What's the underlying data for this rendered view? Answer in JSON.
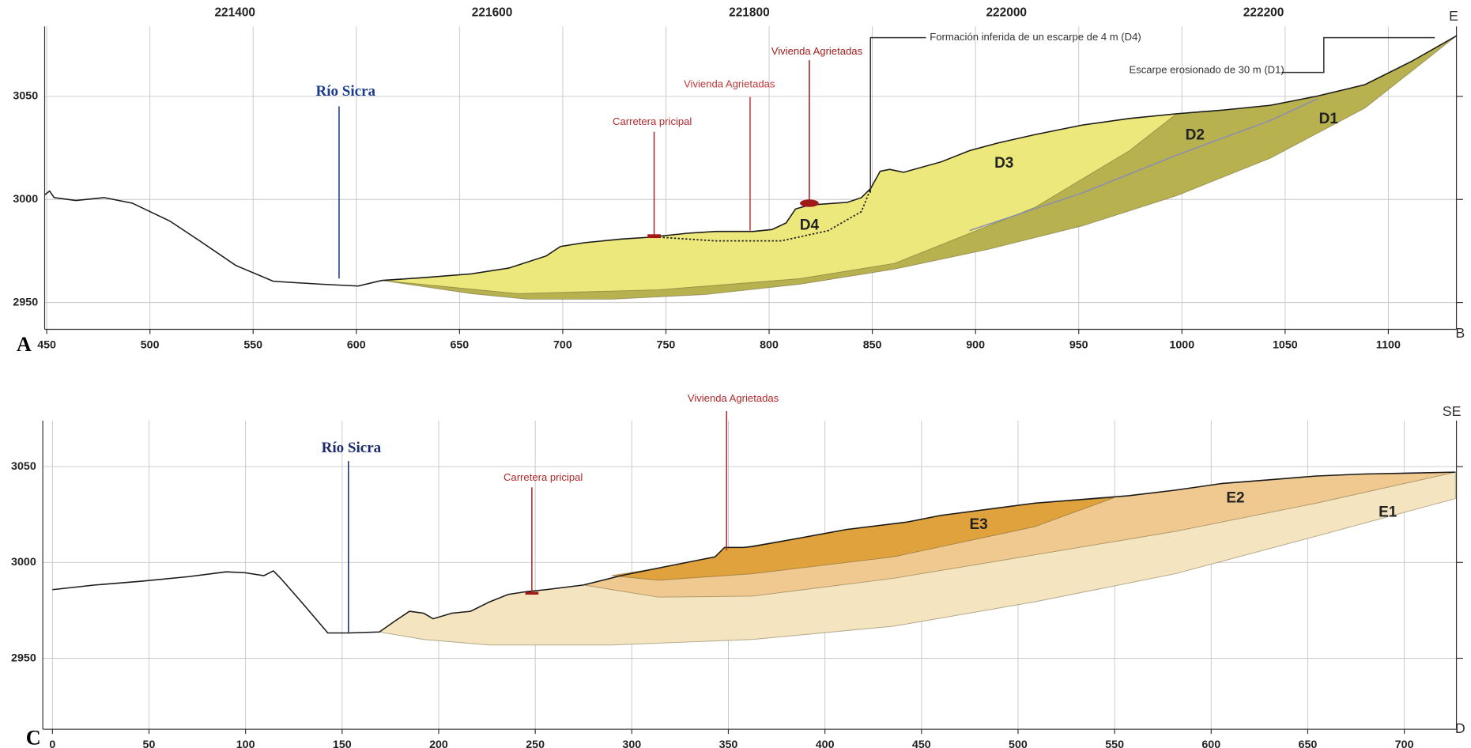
{
  "chart_data": [
    {
      "type": "line",
      "panel_label": "A",
      "end_labels": [
        "E",
        "B"
      ],
      "xlim": [
        449,
        1133
      ],
      "xticks": [
        450,
        500,
        550,
        600,
        650,
        700,
        750,
        800,
        850,
        900,
        950,
        1000,
        1050,
        1100
      ],
      "x2lim": [
        221252,
        222350
      ],
      "x2ticks": [
        221400,
        221600,
        221800,
        222000,
        222200
      ],
      "ylim": [
        2937,
        3084
      ],
      "yticks": [
        2950,
        3000,
        3050
      ],
      "grid": true,
      "areas": [
        {
          "color": "#b8b150",
          "x": [
            612.3,
            632.8,
            655.6,
            673.8,
            692.0,
            698.9,
            710.3,
            728.5,
            742.2,
            760.4,
            774.1,
            792.3,
            801.4,
            808.2,
            812.8,
            819.6,
            837.9,
            844.7,
            849.3,
            853.8,
            858.4,
            865.2,
            883.5,
            897.1,
            910.8,
            929.0,
            951.8,
            974.6,
            997.4,
            1020.2,
            1043.0,
            1065.8,
            1088.6,
            1111.4,
            1133.2,
            1088.6,
            1043.0,
            997.4,
            951.8,
            906.2,
            860.7,
            815.1,
            769.5,
            723.9,
            682.9,
            655.6
          ],
          "values": [
            2960.7,
            2962.1,
            2963.9,
            2966.7,
            2972.6,
            2977.2,
            2979.0,
            2980.8,
            2981.7,
            2983.6,
            2984.5,
            2984.5,
            2985.4,
            2988.6,
            2995.4,
            2997.3,
            2998.6,
            3000.9,
            3005.5,
            3013.7,
            3014.6,
            3013.2,
            3018.3,
            3023.7,
            3027.4,
            3031.5,
            3036.1,
            3039.3,
            3041.6,
            3043.4,
            3045.7,
            3050.2,
            3055.7,
            3067.1,
            3079.5,
            3044.3,
            3020.1,
            3001.8,
            2987.2,
            2975.8,
            2966.2,
            2958.9,
            2953.9,
            2951.6,
            2951.6,
            2954.3
          ]
        },
        {
          "color": "#ede87c",
          "x": [
            612.3,
            632.8,
            655.6,
            673.8,
            692.0,
            698.9,
            710.3,
            728.5,
            742.2,
            760.4,
            774.1,
            792.3,
            801.4,
            808.2,
            812.8,
            819.6,
            837.9,
            844.7,
            849.3,
            853.8,
            858.4,
            865.2,
            883.5,
            897.1,
            910.8,
            929.0,
            951.8,
            974.6,
            997.4,
            974.6,
            929.0,
            883.5,
            860.7,
            815.1,
            746.7,
            678.3
          ],
          "values": [
            2960.7,
            2962.1,
            2963.9,
            2966.7,
            2972.6,
            2977.2,
            2979.0,
            2980.8,
            2981.7,
            2983.6,
            2984.5,
            2984.5,
            2985.4,
            2988.6,
            2995.4,
            2997.3,
            2998.6,
            3000.9,
            3005.5,
            3013.7,
            3014.6,
            3013.2,
            3018.3,
            3023.7,
            3027.4,
            3031.5,
            3036.1,
            3039.3,
            3041.6,
            3023.7,
            2996.3,
            2978.1,
            2969.0,
            2961.6,
            2956.2,
            2954.3
          ]
        }
      ],
      "lines": [
        {
          "color": "#8a8fb0",
          "dash": false,
          "x": [
            897.1,
            951.8,
            997.4,
            1043.0,
            1065.8
          ],
          "values": [
            2984.9,
            3003.2,
            3021.5,
            3038.4,
            3048.9
          ]
        },
        {
          "color": "#222222",
          "dash": true,
          "x": [
            746.7,
            774.1,
            805.9,
            828.7,
            844.7,
            849.3
          ],
          "values": [
            2981.7,
            2979.9,
            2979.9,
            2984.9,
            2994.1,
            3005.5
          ]
        }
      ],
      "series": [
        {
          "color": "#1a1a1a",
          "x": [
            449.1,
            451.4,
            453.6,
            464.1,
            477.8,
            491.5,
            509.7,
            523.4,
            541.6,
            559.8,
            582.6,
            600.9,
            612.3,
            632.8,
            655.6,
            673.8,
            692.0,
            698.9,
            710.3,
            728.5,
            742.2,
            760.4,
            774.1,
            792.3,
            801.4,
            808.2,
            812.8,
            819.6,
            837.9,
            844.7,
            849.3,
            853.8,
            858.4,
            865.2,
            883.5,
            897.1,
            910.8,
            929.0,
            951.8,
            974.6,
            997.4,
            1020.2,
            1043.0,
            1065.8,
            1088.6,
            1111.4,
            1133.2
          ],
          "values": [
            3002.3,
            3004.1,
            3000.9,
            2999.5,
            3000.9,
            2998.2,
            2989.5,
            2980.4,
            2968.0,
            2960.3,
            2958.9,
            2958.0,
            2960.7,
            2962.1,
            2963.9,
            2966.7,
            2972.6,
            2977.2,
            2979.0,
            2980.8,
            2981.7,
            2983.6,
            2984.5,
            2984.5,
            2985.4,
            2988.6,
            2995.4,
            2997.3,
            2998.6,
            3000.9,
            3005.5,
            3013.7,
            3014.6,
            3013.2,
            3018.3,
            3023.7,
            3027.4,
            3031.5,
            3036.1,
            3039.3,
            3041.6,
            3043.4,
            3045.7,
            3050.2,
            3055.7,
            3067.1,
            3079.5
          ]
        }
      ],
      "unit_labels": [
        "D1",
        "D2",
        "D3",
        "D4"
      ],
      "annotations": [
        {
          "text": "Río Sicra",
          "color": "#1c3c8c"
        },
        {
          "text": "Carretera pricipal",
          "color": "#b0282a"
        },
        {
          "text": "Vivienda Agrietadas",
          "color": "#c0393b"
        },
        {
          "text": "Vivienda Agrietadas",
          "color": "#a0201f"
        },
        {
          "text": "Formación inferida de un escarpe de 4 m (D4)",
          "color": "#333333"
        },
        {
          "text": "Escarpe erosionado de 30 m (D1)",
          "color": "#333333"
        }
      ]
    },
    {
      "type": "line",
      "panel_label": "C",
      "end_labels": [
        "SE",
        "D"
      ],
      "xlim": [
        -5,
        727
      ],
      "xticks": [
        0,
        50,
        100,
        150,
        200,
        250,
        300,
        350,
        400,
        450,
        500,
        550,
        600,
        650,
        700
      ],
      "ylim": [
        2913,
        3074
      ],
      "yticks": [
        2950,
        3000,
        3050
      ],
      "grid": true,
      "areas": [
        {
          "color": "#f4e4c0",
          "x": [
            169.3,
            177.6,
            184.9,
            192.2,
            197.1,
            206.8,
            216.5,
            226.3,
            236.0,
            245.7,
            255.5,
            274.9,
            294.4,
            313.9,
            343.1,
            348.0,
            357.7,
            362.5,
            386.9,
            411.2,
            442.8,
            459.9,
            508.5,
            557.2,
            581.5,
            605.8,
            630.1,
            654.5,
            678.8,
            703.2,
            726.5,
            726.5,
            654.5,
            581.5,
            508.5,
            435.5,
            362.5,
            289.5,
            226.3,
            192.2
          ],
          "values": [
            2963.7,
            2969.6,
            2974.5,
            2973.5,
            2970.6,
            2973.5,
            2974.5,
            2979.4,
            2983.3,
            2984.8,
            2985.8,
            2988.2,
            2993.1,
            2997.1,
            3002.9,
            3007.8,
            3007.8,
            3008.3,
            3012.7,
            3017.2,
            3021.1,
            3024.5,
            3030.9,
            3034.8,
            3037.7,
            3041.2,
            3043.1,
            3045.1,
            3046.1,
            3046.6,
            3047.1,
            3033.3,
            3013.7,
            2994.1,
            2979.4,
            2966.7,
            2959.8,
            2956.9,
            2956.9,
            2959.8
          ]
        },
        {
          "color": "#efc98f",
          "x": [
            274.9,
            294.4,
            313.9,
            343.1,
            348.0,
            357.7,
            362.5,
            386.9,
            411.2,
            442.8,
            459.9,
            508.5,
            557.2,
            581.5,
            605.8,
            630.1,
            654.5,
            678.8,
            703.2,
            726.5,
            654.5,
            581.5,
            508.5,
            435.5,
            362.5,
            313.9
          ],
          "values": [
            2988.2,
            2993.1,
            2997.1,
            3002.9,
            3007.8,
            3007.8,
            3008.3,
            3012.7,
            3017.2,
            3021.1,
            3024.5,
            3030.9,
            3034.8,
            3037.7,
            3041.2,
            3043.1,
            3045.1,
            3046.1,
            3046.6,
            3047.1,
            3030.9,
            3016.2,
            3003.9,
            2991.7,
            2982.4,
            2981.9
          ]
        },
        {
          "color": "#e0a23c",
          "x": [
            289.5,
            313.9,
            343.1,
            348.0,
            357.7,
            386.9,
            411.2,
            442.8,
            459.9,
            508.5,
            549.9,
            508.5,
            435.5,
            362.5,
            313.9
          ],
          "values": [
            2993.1,
            2997.1,
            3002.9,
            3007.8,
            3007.8,
            3012.7,
            3017.2,
            3021.1,
            3024.5,
            3030.9,
            3033.8,
            3018.6,
            3002.9,
            2994.1,
            2990.7
          ]
        }
      ],
      "lines": [],
      "series": [
        {
          "color": "#1a1a1a",
          "x": [
            0,
            21.9,
            46.2,
            70.6,
            90.0,
            99.8,
            109.5,
            114.4,
            118.2,
            128.9,
            142.6,
            153.3,
            169.3,
            177.6,
            184.9,
            192.2,
            197.1,
            206.8,
            216.5,
            226.3,
            236.0,
            245.7,
            255.5,
            274.9,
            294.4,
            313.9,
            343.1,
            348.0,
            357.7,
            362.5,
            386.9,
            411.2,
            442.8,
            459.9,
            508.5,
            557.2,
            581.5,
            605.8,
            630.1,
            654.5,
            678.8,
            703.2,
            726.5
          ],
          "values": [
            2985.8,
            2988.2,
            2990.2,
            2992.6,
            2995.1,
            2994.6,
            2993.1,
            2995.6,
            2991.7,
            2979.4,
            2963.2,
            2963.2,
            2963.7,
            2969.6,
            2974.5,
            2973.5,
            2970.6,
            2973.5,
            2974.5,
            2979.4,
            2983.3,
            2984.8,
            2985.8,
            2988.2,
            2993.1,
            2997.1,
            3002.9,
            3007.8,
            3007.8,
            3008.3,
            3012.7,
            3017.2,
            3021.1,
            3024.5,
            3030.9,
            3034.8,
            3037.7,
            3041.2,
            3043.1,
            3045.1,
            3046.1,
            3046.6,
            3047.1
          ]
        }
      ],
      "unit_labels": [
        "E1",
        "E2",
        "E3"
      ],
      "annotations": [
        {
          "text": "Río Sicra",
          "color": "#1c2c6c"
        },
        {
          "text": "Carretera pricipal",
          "color": "#b0282a"
        },
        {
          "text": "Vivienda Agrietadas",
          "color": "#b0282a"
        }
      ]
    }
  ]
}
